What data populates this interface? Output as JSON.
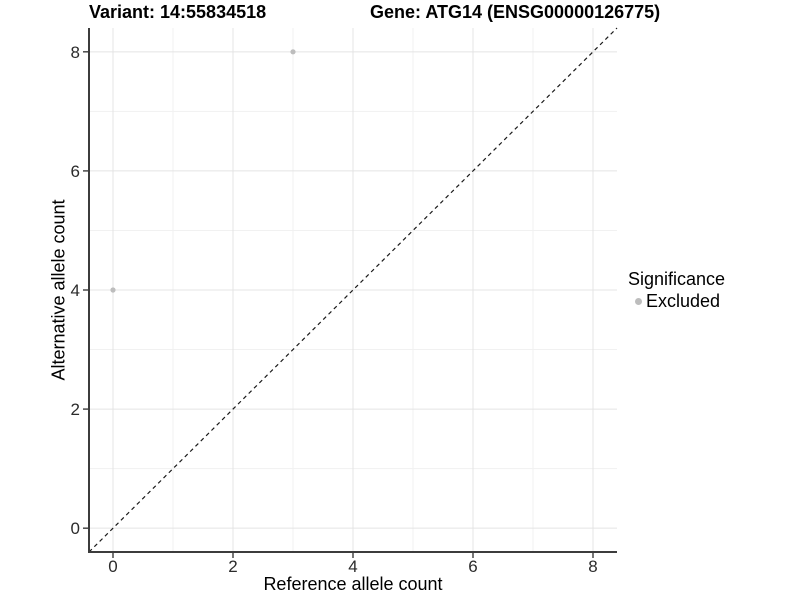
{
  "chart_data": {
    "type": "scatter",
    "titles": {
      "variant": "Variant: 14:55834518",
      "gene": "Gene: ATG14 (ENSG00000126775)"
    },
    "xlabel": "Reference allele count",
    "ylabel": "Alternative allele count",
    "xlim": [
      -0.4,
      8.4
    ],
    "ylim": [
      -0.4,
      8.4
    ],
    "x_major_ticks": [
      0,
      2,
      4,
      6,
      8
    ],
    "y_major_ticks": [
      0,
      2,
      4,
      6,
      8
    ],
    "x_minor_ticks": [
      1,
      3,
      5,
      7
    ],
    "y_minor_ticks": [
      1,
      3,
      5,
      7
    ],
    "grid": true,
    "points": [
      {
        "x": 0,
        "y": 4,
        "significance": "Excluded"
      },
      {
        "x": 3,
        "y": 8,
        "significance": "Excluded"
      }
    ],
    "identity_line": {
      "type": "y=x",
      "style": "dashed",
      "from": -0.4,
      "to": 8.4
    },
    "legend": {
      "position": "right",
      "title": "Significance",
      "items": [
        {
          "label": "Excluded",
          "color": "#bdbdbd"
        }
      ]
    },
    "point_radius": 2.6,
    "colors": {
      "point": "#bdbdbd",
      "grid_major": "#e4e4e4",
      "grid_minor": "#f1f1f1",
      "axis": "#3c3c3c",
      "tick_label": "#2b2b2b",
      "identity_line": "#1a1a1a",
      "background": "#ffffff"
    }
  }
}
